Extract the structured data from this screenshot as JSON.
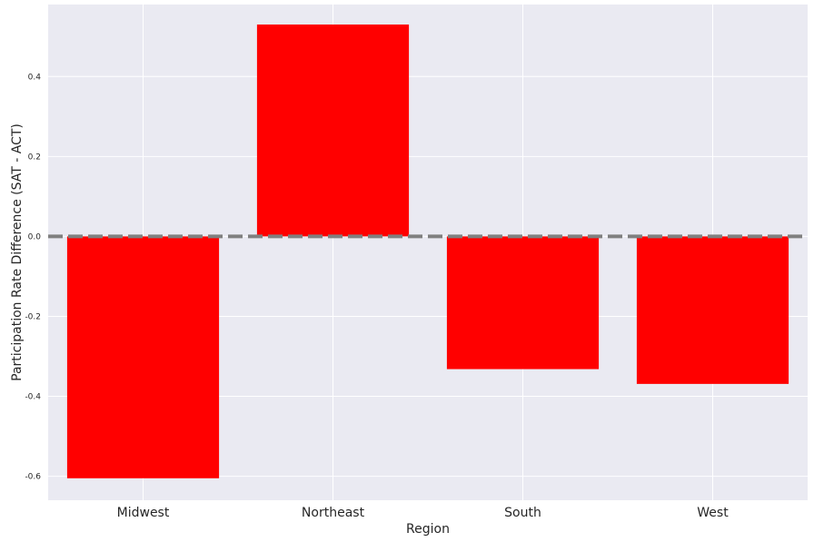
{
  "chart_data": {
    "type": "bar",
    "categories": [
      "Midwest",
      "Northeast",
      "South",
      "West"
    ],
    "values": [
      -0.605,
      0.53,
      -0.332,
      -0.369
    ],
    "title": "",
    "xlabel": "Region",
    "ylabel": "Participation Rate Difference (SAT - ACT)",
    "ylim": [
      -0.66,
      0.58
    ],
    "yticks": [
      0.4,
      0.2,
      0.0,
      -0.2,
      -0.4,
      -0.6
    ],
    "ytick_labels": [
      "0.4",
      "0.2",
      "0.0",
      "-0.2",
      "-0.4",
      "-0.6"
    ],
    "reference_line": 0.0,
    "grid": true,
    "colors": {
      "bar": "#ff0000",
      "plot_background": "#eaeaf2",
      "grid": "#ffffff",
      "reference_line": "#808080"
    }
  }
}
